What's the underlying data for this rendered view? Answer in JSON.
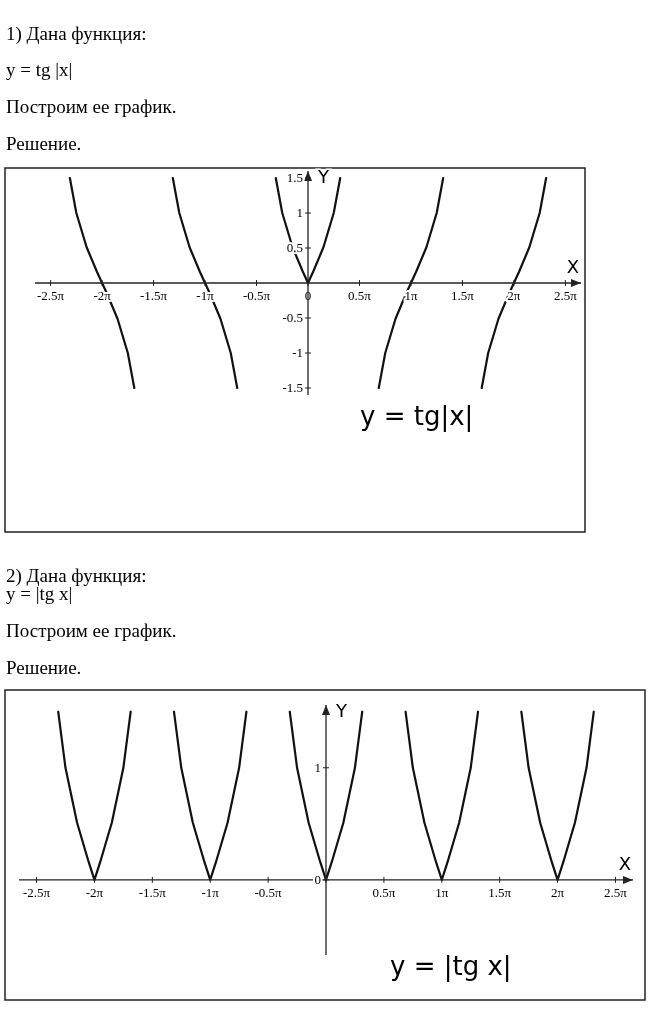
{
  "chart_data": [
    {
      "type": "line",
      "title": "1) Дана функция:",
      "subtitle": "y = tg |x|",
      "xlabel": "X",
      "ylabel": "Y",
      "annotations": [
        "Построим ее график.",
        "Решение.",
        "y = tg|x|"
      ],
      "xlim": [
        -8.33,
        8.33
      ],
      "ylim": [
        -1.6,
        1.6
      ],
      "xticks": [
        {
          "value": -7.854,
          "label": "-2.5π"
        },
        {
          "value": -6.283,
          "label": "-2π"
        },
        {
          "value": -4.712,
          "label": "-1.5π"
        },
        {
          "value": -3.142,
          "label": "-1π"
        },
        {
          "value": -1.571,
          "label": "-0.5π"
        },
        0,
        {
          "value": 1.571,
          "label": "0.5π"
        },
        {
          "value": 3.142,
          "label": "1π"
        },
        {
          "value": 4.712,
          "label": "1.5π"
        },
        {
          "value": 6.283,
          "label": "2π"
        },
        {
          "value": 7.854,
          "label": "2.5π"
        }
      ],
      "yticks": [
        -1.5,
        -1,
        -0.5,
        0.5,
        1,
        1.5
      ],
      "grid": false,
      "marker": "none",
      "line_style": "solid",
      "series": [
        {
          "color": "#111111",
          "x": [
            -7.266,
            -7.069,
            -6.754,
            -6.44,
            -6.283,
            -6.126,
            -5.812,
            -5.498,
            -5.3
          ],
          "values": [
            1.5,
            1,
            0.51,
            0.16,
            0,
            -0.16,
            -0.51,
            -1,
            -1.5
          ]
        },
        {
          "color": "#111111",
          "x": [
            -4.125,
            -3.927,
            -3.613,
            -3.299,
            -3.142,
            -2.985,
            -2.671,
            -2.357,
            -2.159
          ],
          "values": [
            1.5,
            1,
            0.51,
            0.16,
            0,
            -0.16,
            -0.51,
            -1,
            -1.5
          ]
        },
        {
          "color": "#111111",
          "x": [
            -0.983,
            -0.785,
            -0.471,
            -0.157,
            0,
            0.157,
            0.471,
            0.785,
            0.983
          ],
          "values": [
            1.5,
            1,
            0.51,
            0.16,
            0,
            0.16,
            0.51,
            1,
            1.5
          ]
        },
        {
          "color": "#111111",
          "x": [
            2.159,
            2.357,
            2.671,
            2.985,
            3.142,
            3.299,
            3.613,
            3.927,
            4.125
          ],
          "values": [
            -1.5,
            -1,
            -0.51,
            -0.16,
            0,
            0.16,
            0.51,
            1,
            1.5
          ]
        },
        {
          "color": "#111111",
          "x": [
            5.3,
            5.498,
            5.812,
            6.126,
            6.283,
            6.44,
            6.754,
            7.069,
            7.266
          ],
          "values": [
            -1.5,
            -1,
            -0.51,
            -0.16,
            0,
            0.16,
            0.51,
            1,
            1.5
          ]
        }
      ]
    },
    {
      "type": "line",
      "title": "2) Дана функция:",
      "subtitle": "y = |tg x|",
      "xlabel": "X",
      "ylabel": "Y",
      "annotations": [
        "Построим ее график.",
        "Решение.",
        "y = |tg x|"
      ],
      "xlim": [
        -8.33,
        8.33
      ],
      "ylim": [
        -0.67,
        1.56
      ],
      "xticks": [
        {
          "value": -7.854,
          "label": "-2.5π"
        },
        {
          "value": -6.283,
          "label": "-2π"
        },
        {
          "value": -4.712,
          "label": "-1.5π"
        },
        {
          "value": -3.142,
          "label": "-1π"
        },
        {
          "value": -1.571,
          "label": "-0.5π"
        },
        {
          "value": 0,
          "label": null
        },
        {
          "value": 1.571,
          "label": "0.5π"
        },
        {
          "value": 3.142,
          "label": "1π"
        },
        {
          "value": 4.712,
          "label": "1.5π"
        },
        {
          "value": 6.283,
          "label": "2π"
        },
        {
          "value": 7.854,
          "label": "2.5π"
        }
      ],
      "yticks": [
        0,
        1
      ],
      "grid": false,
      "marker": "none",
      "line_style": "solid",
      "series": [
        {
          "color": "#111111",
          "x": [
            -7.266,
            -7.069,
            -6.754,
            -6.44,
            -6.283,
            -6.126,
            -5.812,
            -5.498,
            -5.3
          ],
          "values": [
            1.5,
            1,
            0.51,
            0.16,
            0,
            0.16,
            0.51,
            1,
            1.5
          ]
        },
        {
          "color": "#111111",
          "x": [
            -4.125,
            -3.927,
            -3.613,
            -3.299,
            -3.142,
            -2.985,
            -2.671,
            -2.357,
            -2.159
          ],
          "values": [
            1.5,
            1,
            0.51,
            0.16,
            0,
            0.16,
            0.51,
            1,
            1.5
          ]
        },
        {
          "color": "#111111",
          "x": [
            -0.983,
            -0.785,
            -0.471,
            -0.157,
            0,
            0.157,
            0.471,
            0.785,
            0.983
          ],
          "values": [
            1.5,
            1,
            0.51,
            0.16,
            0,
            0.16,
            0.51,
            1,
            1.5
          ]
        },
        {
          "color": "#111111",
          "x": [
            2.159,
            2.357,
            2.671,
            2.985,
            3.142,
            3.299,
            3.613,
            3.927,
            4.125
          ],
          "values": [
            1.5,
            1,
            0.51,
            0.16,
            0,
            0.16,
            0.51,
            1,
            1.5
          ]
        },
        {
          "color": "#111111",
          "x": [
            5.3,
            5.498,
            5.812,
            6.126,
            6.283,
            6.44,
            6.754,
            7.069,
            7.266
          ],
          "values": [
            1.5,
            1,
            0.51,
            0.16,
            0,
            0.16,
            0.51,
            1,
            1.5
          ]
        }
      ]
    }
  ]
}
